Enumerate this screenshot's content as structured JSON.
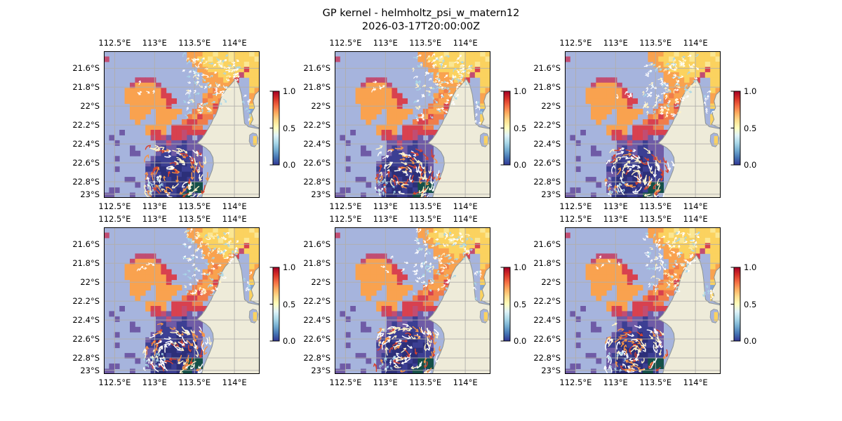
{
  "figure": {
    "title": "GP kernel - helmholtz_psi_w_matern12",
    "subtitle": "2026-03-17T20:00:00Z"
  },
  "chart_data": {
    "type": "heatmap",
    "title": "GP kernel - helmholtz_psi_w_matern12",
    "subtitle": "2026-03-17T20:00:00Z",
    "layout": {
      "rows": 2,
      "cols": 3,
      "panel_count": 6
    },
    "panels": [
      {
        "id": "sample-1",
        "row": 0,
        "col": 0,
        "seed": 11
      },
      {
        "id": "sample-2",
        "row": 0,
        "col": 1,
        "seed": 12
      },
      {
        "id": "sample-3",
        "row": 0,
        "col": 2,
        "seed": 13
      },
      {
        "id": "sample-4",
        "row": 1,
        "col": 0,
        "seed": 14
      },
      {
        "id": "sample-5",
        "row": 1,
        "col": 1,
        "seed": 15
      },
      {
        "id": "sample-6",
        "row": 1,
        "col": 2,
        "seed": 16
      }
    ],
    "x": {
      "name": "longitude",
      "ticks": [
        112.5,
        113,
        113.5,
        114
      ],
      "tick_labels": [
        "112.5°E",
        "113°E",
        "113.5°E",
        "114°E"
      ],
      "range": [
        112.365,
        114.315
      ],
      "labels_on": [
        "top",
        "bottom"
      ]
    },
    "y": {
      "name": "latitude",
      "ticks": [
        21.6,
        21.8,
        22,
        22.2,
        22.4,
        22.6,
        22.8,
        23
      ],
      "tick_labels": [
        "21.6°S",
        "21.8°S",
        "22°S",
        "22.2°S",
        "22.4°S",
        "22.6°S",
        "22.8°S",
        "23°S"
      ],
      "range": [
        21.42,
        22.97
      ],
      "labels_on": [
        "left"
      ]
    },
    "colorbar": {
      "colormap": "RdYlBu_r",
      "range": [
        0,
        1
      ],
      "ticks": [
        1.0,
        0.5,
        0.0
      ],
      "tick_labels": [
        "1.0",
        "0.5",
        "0.0"
      ],
      "gradient_bottom_to_top": [
        "#313695",
        "#4575b4",
        "#74add1",
        "#abd9e9",
        "#e0f3f8",
        "#ffffbf",
        "#fee090",
        "#fdae61",
        "#f46d43",
        "#d73027",
        "#a50026"
      ]
    },
    "map": {
      "background": "#a6b4dd",
      "land_color": "#eeebd9",
      "coast_color": "#8f9693",
      "grid_color": "#b1aeab",
      "frame_color": "#000000",
      "land_main": [
        [
          0.845,
          0.19
        ],
        [
          0.868,
          0.232
        ],
        [
          0.884,
          0.295
        ],
        [
          0.891,
          0.355
        ],
        [
          0.897,
          0.425
        ],
        [
          0.903,
          0.492
        ],
        [
          0.928,
          0.515
        ],
        [
          0.962,
          0.522
        ],
        [
          1.0,
          0.53
        ],
        [
          1.0,
          1.0
        ],
        [
          0.628,
          1.0
        ],
        [
          0.639,
          0.952
        ],
        [
          0.659,
          0.903
        ],
        [
          0.678,
          0.858
        ],
        [
          0.695,
          0.812
        ],
        [
          0.704,
          0.768
        ],
        [
          0.7,
          0.724
        ],
        [
          0.682,
          0.686
        ],
        [
          0.656,
          0.66
        ],
        [
          0.63,
          0.643
        ],
        [
          0.601,
          0.626
        ],
        [
          0.627,
          0.598
        ],
        [
          0.651,
          0.563
        ],
        [
          0.671,
          0.526
        ],
        [
          0.689,
          0.494
        ],
        [
          0.702,
          0.462
        ],
        [
          0.719,
          0.433
        ],
        [
          0.732,
          0.396
        ],
        [
          0.741,
          0.358
        ],
        [
          0.754,
          0.313
        ],
        [
          0.779,
          0.268
        ],
        [
          0.816,
          0.226
        ]
      ],
      "land_strip": [
        [
          1.0,
          0.268
        ],
        [
          0.972,
          0.295
        ],
        [
          0.958,
          0.34
        ],
        [
          0.968,
          0.385
        ],
        [
          0.947,
          0.425
        ],
        [
          0.958,
          0.465
        ],
        [
          0.942,
          0.498
        ],
        [
          0.975,
          0.515
        ],
        [
          1.0,
          0.522
        ]
      ],
      "lagoon": [
        [
          0.936,
          0.572
        ],
        [
          0.956,
          0.558
        ],
        [
          0.979,
          0.564
        ],
        [
          0.99,
          0.592
        ],
        [
          0.986,
          0.628
        ],
        [
          0.967,
          0.652
        ],
        [
          0.945,
          0.646
        ],
        [
          0.933,
          0.614
        ]
      ],
      "lagoon_cells": [
        [
          0.958,
          0.578,
          0.024,
          0.062
        ]
      ]
    },
    "grid": {
      "ncols": 30,
      "nrows": 28,
      "palette": {
        "Y": {
          "color": "#fbd25f",
          "value": 0.65
        },
        "L": {
          "color": "#fbe793",
          "value": 0.6
        },
        "O": {
          "color": "#f9a24f",
          "value": 0.75
        },
        "o": {
          "color": "#f07d4a",
          "value": 0.8
        },
        "R": {
          "color": "#d8414f",
          "value": 0.9
        },
        "M": {
          "color": "#c14d72",
          "value": 0.95
        },
        "P": {
          "color": "#6f5ba6",
          "value": 0.15
        },
        "N": {
          "color": "#3c3f93",
          "value": 0.05
        },
        "D": {
          "color": "#2c2f79",
          "value": 0.02
        },
        "T": {
          "color": "#155048",
          "value": 0.0
        },
        "b": {
          "color": "#7ea3d8",
          "value": 0.35
        }
      },
      "rows": [
        "................OOOYYLYYLYYYLY",
        "M...............OOYYLYYYLYYYYL",
        ".................OOYYYLYYYYLYY",
        "..................OOYYYYLYYRYY",
        "...................OOOYYYYMYYY",
        "......MMMM.........OOOOYOR..YY",
        ".....MOOOOM.........OOOOO...YY",
        "....OOOOOOOR........OoOOO...YO",
        "....OOOOOOORR......OoOOo....OO",
        "....OOOOOOOORR.....oOOo.....O.",
        ".....OOOOOOOR.....oOORo.....Yb",
        ".....OOOO.OOOOO..oOOOo......b.",
        ".....OOO..OOOO..oORoo.......YY",
        "......O...OOO..oRRoo........Y.",
        "........OOOO.RRRRoo...........",
        "...P....ORRO.RRMRRRR..........",
        ".P.......MRMPRRMP.P..........Y",
        "..P.......PPMPPNPPP..........Y",
        ".....P....PNPPNNPPP...........",
        ".....PP...PNNPNNNPP...........",
        "..P......PNNNNDNNPP...........",
        "........PNDNNNDDNNP...........",
        "..P.....NNDDNDDNNDP...........",
        "........PPNDDDNDDNN...........",
        "....PP..PNDDNDDDNNN...........",
        "......P.PNDNDDNDTTT...........",
        ".PP.....PPNDDNDNTTT...........",
        "PP...P...NDDNNDTTN............"
      ]
    },
    "quiver": {
      "arrow_colors": {
        "white": "#ffffff",
        "cream": "#fff3c6",
        "light_blue": "#a9d7e8",
        "orange": "#f69447",
        "red": "#d8432f"
      },
      "regions": [
        {
          "name": "northeast-flow",
          "x": [
            0.5,
            0.865
          ],
          "y": [
            0.03,
            0.46
          ],
          "count": 110,
          "length": [
            3.5,
            6.5
          ],
          "stroke": 1.1,
          "mode": "flow",
          "angle": -15,
          "spread": 70,
          "colors": [
            [
              "white",
              0.45
            ],
            [
              "light_blue",
              0.33
            ],
            [
              "cream",
              0.22
            ]
          ]
        },
        {
          "name": "gulf-flow",
          "x": [
            0.895,
            0.945
          ],
          "y": [
            0.28,
            0.5
          ],
          "count": 8,
          "length": [
            3.5,
            5.5
          ],
          "stroke": 1.0,
          "mode": "flow",
          "angle": -80,
          "spread": 60,
          "colors": [
            [
              "white",
              0.5
            ],
            [
              "light_blue",
              0.5
            ]
          ]
        },
        {
          "name": "central-sparse",
          "x": [
            0.2,
            0.45
          ],
          "y": [
            0.21,
            0.31
          ],
          "count": 5,
          "length": [
            4,
            6
          ],
          "stroke": 1.1,
          "mode": "flow",
          "angle": 5,
          "spread": 80,
          "colors": [
            [
              "white",
              1
            ]
          ]
        },
        {
          "name": "southern-vortex",
          "x": [
            0.26,
            0.705
          ],
          "y": [
            0.66,
            0.995
          ],
          "count": 85,
          "length": [
            6,
            12
          ],
          "stroke": 1.4,
          "mode": "vortex",
          "cx": 0.44,
          "cy": 0.86,
          "colors": [
            [
              "white",
              0.32
            ],
            [
              "cream",
              0.25
            ],
            [
              "orange",
              0.25
            ],
            [
              "red",
              0.18
            ]
          ]
        },
        {
          "name": "southwest-blue",
          "x": [
            0.26,
            0.4
          ],
          "y": [
            0.87,
            0.99
          ],
          "count": 14,
          "length": [
            3.5,
            5.5
          ],
          "stroke": 1.0,
          "mode": "flow",
          "angle": -100,
          "spread": 50,
          "colors": [
            [
              "light_blue",
              0.8
            ],
            [
              "white",
              0.2
            ]
          ]
        }
      ]
    }
  }
}
